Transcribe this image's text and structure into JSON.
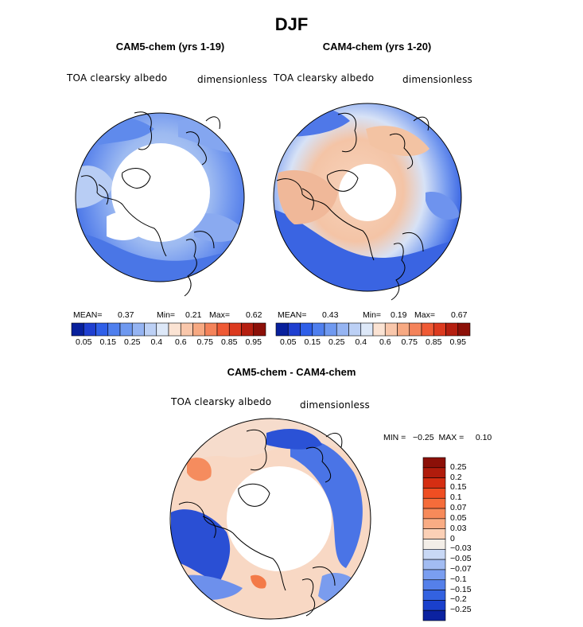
{
  "figure": {
    "title": "DJF",
    "difference_title": "CAM5-chem - CAM4-chem"
  },
  "panels": [
    {
      "id": "cam5",
      "title": "CAM5-chem (yrs 1-19)",
      "left_label": "TOA clearsky albedo",
      "right_label": "dimensionless",
      "stats": {
        "mean_label": "MEAN=",
        "mean": "0.37",
        "min_label": "Min=",
        "min": "0.21",
        "max_label": "Max=",
        "max": "0.62"
      }
    },
    {
      "id": "cam4",
      "title": "CAM4-chem (yrs 1-20)",
      "left_label": "TOA clearsky albedo",
      "right_label": "dimensionless",
      "stats": {
        "mean_label": "MEAN=",
        "mean": "0.43",
        "min_label": "Min=",
        "min": "0.19",
        "max_label": "Max=",
        "max": "0.67"
      }
    }
  ],
  "diff_panel": {
    "left_label": "TOA clearsky albedo",
    "right_label": "dimensionless",
    "stats_text": "MIN =   −0.25  MAX =     0.10"
  },
  "colorbars": {
    "absolute": {
      "tick_labels": [
        "0.05",
        "0.15",
        "0.25",
        "0.4",
        "0.6",
        "0.75",
        "0.85",
        "0.95"
      ],
      "colors": [
        "#08209c",
        "#1f3fd0",
        "#2f5fe8",
        "#4f7fee",
        "#6f99f0",
        "#95b4f2",
        "#bcd0f5",
        "#dde8f8",
        "#fbe3d3",
        "#f9c7ab",
        "#f7a982",
        "#f4835a",
        "#ef5a35",
        "#dc3a1f",
        "#b51f10",
        "#8c1008"
      ]
    },
    "difference": {
      "tick_labels": [
        "0.25",
        "0.2",
        "0.15",
        "0.1",
        "0.07",
        "0.05",
        "0.03",
        "0",
        "−0.03",
        "−0.05",
        "−0.07",
        "−0.1",
        "−0.15",
        "−0.2",
        "−0.25"
      ],
      "colors": [
        "#8c1008",
        "#b01c0c",
        "#d52e12",
        "#ef4e22",
        "#f56c3a",
        "#f78a5a",
        "#f9ac84",
        "#fbd0b6",
        "#f3eee8",
        "#c8d8f5",
        "#a2bcf2",
        "#7a9ef0",
        "#5580ea",
        "#3362e0",
        "#1a40cc",
        "#0b22a0"
      ]
    }
  },
  "chart_data": [
    {
      "type": "heatmap",
      "title": "CAM5-chem (yrs 1-19)",
      "projection": "north polar stereographic",
      "variable": "TOA clearsky albedo",
      "units": "dimensionless",
      "mean": 0.37,
      "min": 0.21,
      "max": 0.62,
      "levels": [
        0.05,
        0.15,
        0.25,
        0.4,
        0.6,
        0.75,
        0.85,
        0.95
      ]
    },
    {
      "type": "heatmap",
      "title": "CAM4-chem (yrs 1-20)",
      "projection": "north polar stereographic",
      "variable": "TOA clearsky albedo",
      "units": "dimensionless",
      "mean": 0.43,
      "min": 0.19,
      "max": 0.67,
      "levels": [
        0.05,
        0.15,
        0.25,
        0.4,
        0.6,
        0.75,
        0.85,
        0.95
      ]
    },
    {
      "type": "heatmap",
      "title": "CAM5-chem - CAM4-chem",
      "projection": "north polar stereographic",
      "variable": "TOA clearsky albedo",
      "units": "dimensionless",
      "min": -0.25,
      "max": 0.1,
      "levels": [
        -0.25,
        -0.2,
        -0.15,
        -0.1,
        -0.07,
        -0.05,
        -0.03,
        0,
        0.03,
        0.05,
        0.07,
        0.1,
        0.15,
        0.2,
        0.25
      ]
    }
  ]
}
